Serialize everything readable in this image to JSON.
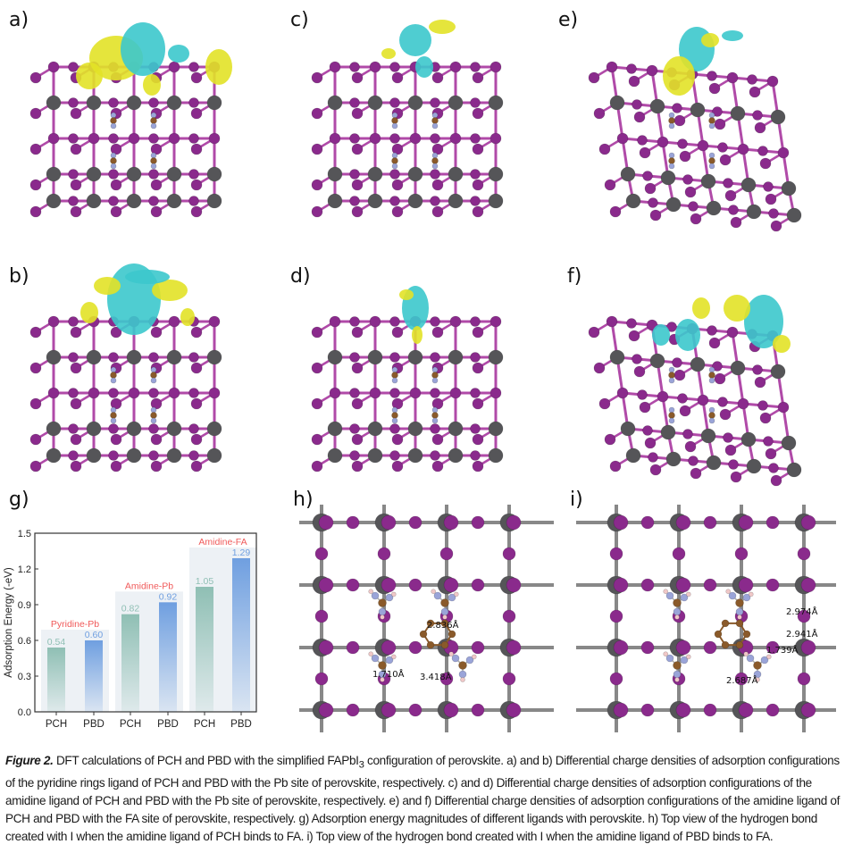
{
  "panels": {
    "a": {
      "label": "a)"
    },
    "b": {
      "label": "b)"
    },
    "c": {
      "label": "c)"
    },
    "d": {
      "label": "d)"
    },
    "e": {
      "label": "e)"
    },
    "f": {
      "label": "f)"
    },
    "g": {
      "label": "g)"
    },
    "h": {
      "label": "h)",
      "distances": [
        "2.836Å",
        "1.710Å",
        "3.418Å"
      ]
    },
    "i": {
      "label": "i)",
      "distances": [
        "2.974Å",
        "2.941Å",
        "1.739Å",
        "2.687Å"
      ]
    }
  },
  "colors": {
    "iodide": "#8a2a8c",
    "lead": "#555558",
    "bond": "#b04aa8",
    "charge_accumulation": "#e2e227",
    "charge_depletion": "#3cc8cc",
    "carbon": "#8a5a2a",
    "nitrogen": "#9aa4d8",
    "hydrogen": "#f0c8c8",
    "group_label": "#f05a5a",
    "pch_bar": "#8fbfb4",
    "pbd_bar": "#6f9fe0"
  },
  "chart_data": {
    "type": "bar",
    "categories": [
      "PCH",
      "PBD",
      "PCH",
      "PBD",
      "PCH",
      "PBD"
    ],
    "groups": [
      {
        "name": "Pyridine-Pb",
        "values": [
          0.54,
          0.6
        ],
        "value_labels": [
          "0.54",
          "0.60"
        ]
      },
      {
        "name": "Amidine-Pb",
        "values": [
          0.82,
          0.92
        ],
        "value_labels": [
          "0.82",
          "0.92"
        ]
      },
      {
        "name": "Amidine-FA",
        "values": [
          1.05,
          1.29
        ],
        "value_labels": [
          "1.05",
          "1.29"
        ]
      }
    ],
    "title": "",
    "xlabel": "",
    "ylabel": "Adsorption Energy (-eV)",
    "ylim": [
      0,
      1.5
    ],
    "yticks": [
      "0.0",
      "0.3",
      "0.6",
      "0.9",
      "1.2",
      "1.5"
    ],
    "grid": false
  },
  "caption": {
    "lead": "Figure 2.",
    "text1": " DFT calculations of PCH and PBD with the simplified FAPbI",
    "sub": "3",
    "text2": " configuration of perovskite. a) and b) Differential charge densities of adsorption configurations of the pyridine rings ligand of PCH and PBD with the Pb site of perovskite, respectively. c) and d) Differential charge densities of adsorption configurations of the amidine ligand of PCH and PBD with the Pb site of perovskite, respectively. e) and f) Differential charge densities of adsorption configurations of the amidine ligand of PCH and PBD with the FA site of perovskite, respectively. g) Adsorption energy magnitudes of different ligands with perovskite. h) Top view of the hydrogen bond created with I when the amidine ligand of PCH binds to FA. i) Top view of the hydrogen bond created with I when the amidine ligand of PBD binds to FA."
  }
}
